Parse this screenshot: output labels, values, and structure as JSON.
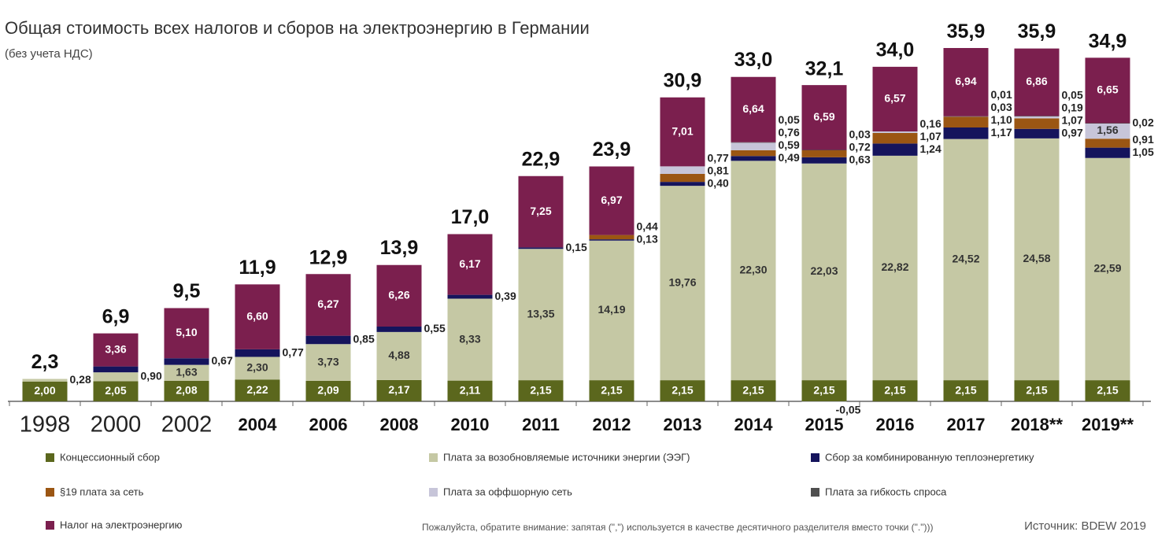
{
  "chart_data": {
    "type": "stacked-bar",
    "title": "Общая стоимость всех налогов и сборов на электроэнергию в Германии",
    "subtitle": "(без учета НДС)",
    "note": "Пожалуйста, обратите внимание: запятая (\",\") используется в качестве десятичного разделителя вместо точки (\".\")))",
    "source": "Источник: BDEW 2019",
    "categories": [
      "1998",
      "2000",
      "2002",
      "2004",
      "2006",
      "2008",
      "2010",
      "2011",
      "2012",
      "2013",
      "2014",
      "2015",
      "2016",
      "2017",
      "2018**",
      "2019**"
    ],
    "ylim": [
      0,
      40
    ],
    "series": [
      {
        "name": "Концессионный сбор",
        "color": "#5b671d",
        "values": [
          2.0,
          2.05,
          2.08,
          2.22,
          2.09,
          2.17,
          2.11,
          2.15,
          2.15,
          2.15,
          2.15,
          2.15,
          2.15,
          2.15,
          2.15,
          2.15
        ],
        "value_labels": [
          "2,00",
          "2,05",
          "2,08",
          "2,22",
          "2,09",
          "2,17",
          "2,11",
          "2,15",
          "2,15",
          "2,15",
          "2,15",
          "2,15",
          "2,15",
          "2,15",
          "2,15",
          "2,15"
        ]
      },
      {
        "name": "Плата за возобновляемые источники энергии (ЭЭГ)",
        "color": "#c5c8a4",
        "values": [
          0.28,
          0.9,
          1.63,
          2.3,
          3.73,
          4.88,
          8.33,
          13.35,
          14.19,
          19.76,
          22.3,
          22.03,
          22.82,
          24.52,
          24.58,
          22.59
        ],
        "value_labels": [
          "0,28",
          "0,90",
          "1,63",
          "2,30",
          "3,73",
          "4,88",
          "8,33",
          "13,35",
          "14,19",
          "19,76",
          "22,30",
          "22,03",
          "22,82",
          "24,52",
          "24,58",
          "22,59"
        ]
      },
      {
        "name": "Сбор за комбинированную теплоэнергетику",
        "color": "#15145c",
        "values": [
          null,
          0.6,
          0.67,
          0.77,
          0.85,
          0.55,
          0.39,
          0.15,
          0.13,
          0.4,
          0.49,
          0.63,
          1.24,
          1.17,
          0.97,
          1.05
        ],
        "value_labels": [
          null,
          null,
          "0,67",
          "0,77",
          "0,85",
          "0,55",
          "0,39",
          "0,15",
          "0,13",
          "0,40",
          "0,49",
          "0,63",
          "1,24",
          "1,17",
          "0,97",
          "1,05"
        ]
      },
      {
        "name": "§19 плата за сеть",
        "color": "#9b5613",
        "values": [
          null,
          null,
          null,
          null,
          null,
          null,
          null,
          null,
          0.44,
          0.81,
          0.59,
          0.72,
          1.07,
          1.1,
          1.07,
          0.91
        ],
        "value_labels": [
          null,
          null,
          null,
          null,
          null,
          null,
          null,
          null,
          "0,44",
          "0,81",
          "0,59",
          "0,72",
          "1,07",
          "1,10",
          "1,07",
          "0,91"
        ]
      },
      {
        "name": "Плата за оффшорную сеть",
        "color": "#c7c5d9",
        "values": [
          null,
          null,
          null,
          null,
          null,
          null,
          null,
          null,
          null,
          0.77,
          0.76,
          -0.05,
          0.16,
          0.03,
          0.19,
          1.56
        ],
        "value_labels": [
          null,
          null,
          null,
          null,
          null,
          null,
          null,
          null,
          null,
          "0,77",
          "0,76",
          "-0,05",
          "0,16",
          "0,03",
          "0,19",
          "1,56"
        ]
      },
      {
        "name": "Плата за гибкость спроса",
        "color": "#4f4f4f",
        "values": [
          null,
          null,
          null,
          null,
          null,
          null,
          null,
          null,
          null,
          null,
          0.05,
          0.03,
          null,
          0.01,
          0.05,
          0.02
        ],
        "value_labels": [
          null,
          null,
          null,
          null,
          null,
          null,
          null,
          null,
          null,
          null,
          "0,05",
          "0,03",
          null,
          "0,01",
          "0,05",
          "0,02"
        ]
      },
      {
        "name": "Налог на электроэнергию",
        "color": "#7b1f4e",
        "values": [
          null,
          3.36,
          5.1,
          6.6,
          6.27,
          6.26,
          6.17,
          7.25,
          6.97,
          7.01,
          6.64,
          6.59,
          6.57,
          6.94,
          6.86,
          6.65
        ],
        "value_labels": [
          null,
          "3,36",
          "5,10",
          "6,60",
          "6,27",
          "6,26",
          "6,17",
          "7,25",
          "6,97",
          "7,01",
          "6,64",
          "6,59",
          "6,57",
          "6,94",
          "6,86",
          "6,65"
        ]
      }
    ],
    "totals": {
      "values": [
        2.3,
        6.9,
        9.5,
        11.9,
        12.9,
        13.9,
        17.0,
        22.9,
        23.9,
        30.9,
        33.0,
        32.1,
        34.0,
        35.9,
        35.9,
        34.9
      ],
      "value_labels": [
        "2,3",
        "6,9",
        "9,5",
        "11,9",
        "12,9",
        "13,9",
        "17,0",
        "22,9",
        "23,9",
        "30,9",
        "33,0",
        "32,1",
        "34,0",
        "35,9",
        "35,9",
        "34,9"
      ]
    }
  }
}
